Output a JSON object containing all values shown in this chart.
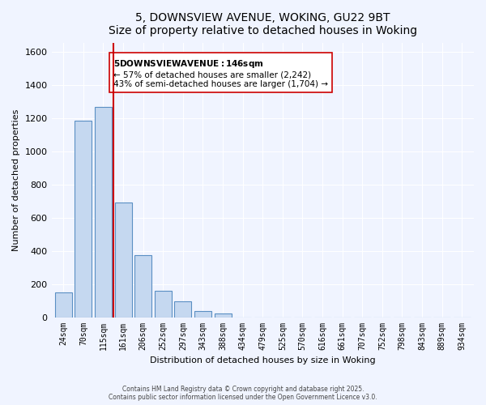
{
  "title": "5, DOWNSVIEW AVENUE, WOKING, GU22 9BT",
  "subtitle": "Size of property relative to detached houses in Woking",
  "xlabel": "Distribution of detached houses by size in Woking",
  "ylabel": "Number of detached properties",
  "bar_color": "#c5d8f0",
  "bar_edge_color": "#5a8fc3",
  "background_color": "#f0f4ff",
  "categories": [
    "24sqm",
    "70sqm",
    "115sqm",
    "161sqm",
    "206sqm",
    "252sqm",
    "297sqm",
    "343sqm",
    "388sqm",
    "434sqm",
    "479sqm",
    "525sqm",
    "570sqm",
    "616sqm",
    "661sqm",
    "707sqm",
    "752sqm",
    "798sqm",
    "843sqm",
    "889sqm",
    "934sqm"
  ],
  "values": [
    150,
    1185,
    1265,
    690,
    375,
    160,
    95,
    35,
    20,
    0,
    0,
    0,
    0,
    0,
    0,
    0,
    0,
    0,
    0,
    0,
    0
  ],
  "ylim": [
    0,
    1650
  ],
  "yticks": [
    0,
    200,
    400,
    600,
    800,
    1000,
    1200,
    1400,
    1600
  ],
  "vline_x": 3,
  "vline_color": "#cc0000",
  "annotation_title": "5 DOWNSVIEW AVENUE: 146sqm",
  "annotation_line1": "← 57% of detached houses are smaller (2,242)",
  "annotation_line2": "43% of semi-detached houses are larger (1,704) →",
  "annotation_box_color": "#ffffff",
  "annotation_box_edge": "#cc0000",
  "footer1": "Contains HM Land Registry data © Crown copyright and database right 2025.",
  "footer2": "Contains public sector information licensed under the Open Government Licence v3.0."
}
